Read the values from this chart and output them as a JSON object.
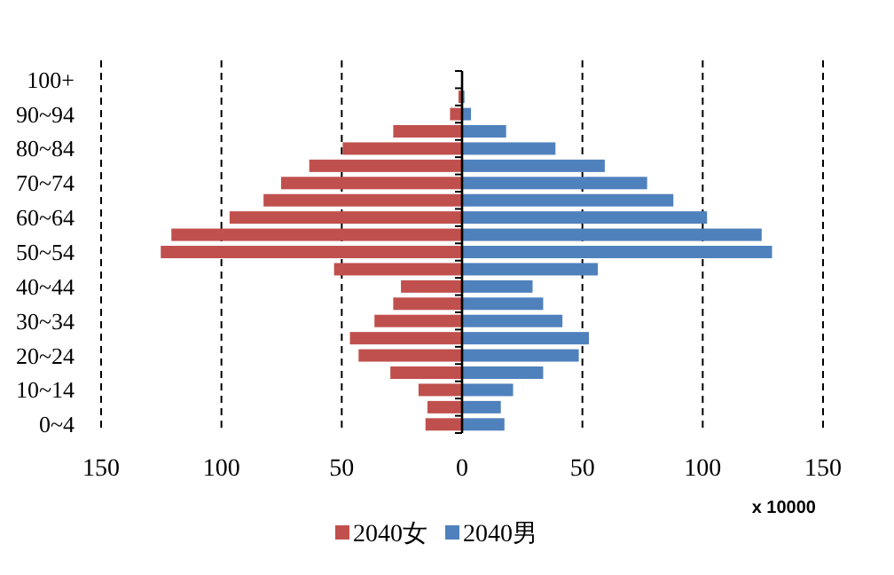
{
  "chart_data": {
    "type": "bar",
    "orientation": "horizontal",
    "categories": [
      "100+",
      null,
      "90~94",
      null,
      "80~84",
      null,
      "70~74",
      null,
      "60~64",
      null,
      "50~54",
      null,
      "40~44",
      null,
      "30~34",
      null,
      "20~24",
      null,
      "10~14",
      null,
      "0~4"
    ],
    "series": [
      {
        "name": "2040女",
        "color": "#c0504d",
        "values": [
          null,
          -1.5,
          -5,
          -28.6,
          -49.6,
          -63.5,
          -75.2,
          -82.5,
          -96.6,
          -120.8,
          -125.2,
          -53.2,
          -25.4,
          -28.6,
          -36.4,
          -46.6,
          -43,
          -29.8,
          -18.1,
          -14.4,
          -15.2
        ]
      },
      {
        "name": "2040男",
        "color": "#4f81bd",
        "values": [
          null,
          1,
          3.7,
          18.3,
          38.8,
          59.3,
          76.9,
          87.8,
          101.8,
          124.5,
          128.8,
          56.4,
          29.3,
          33.7,
          41.7,
          52.7,
          48.5,
          33.7,
          21.2,
          16.1,
          17.6
        ]
      }
    ],
    "xlim": [
      -150,
      150
    ],
    "xticks": [
      {
        "value": -150,
        "label": "150"
      },
      {
        "value": -100,
        "label": "100"
      },
      {
        "value": -50,
        "label": "50"
      },
      0,
      50,
      100,
      150
    ],
    "grid": "x",
    "legend": "bottom",
    "stacked": true,
    "annotations": [
      "x 10000"
    ]
  }
}
